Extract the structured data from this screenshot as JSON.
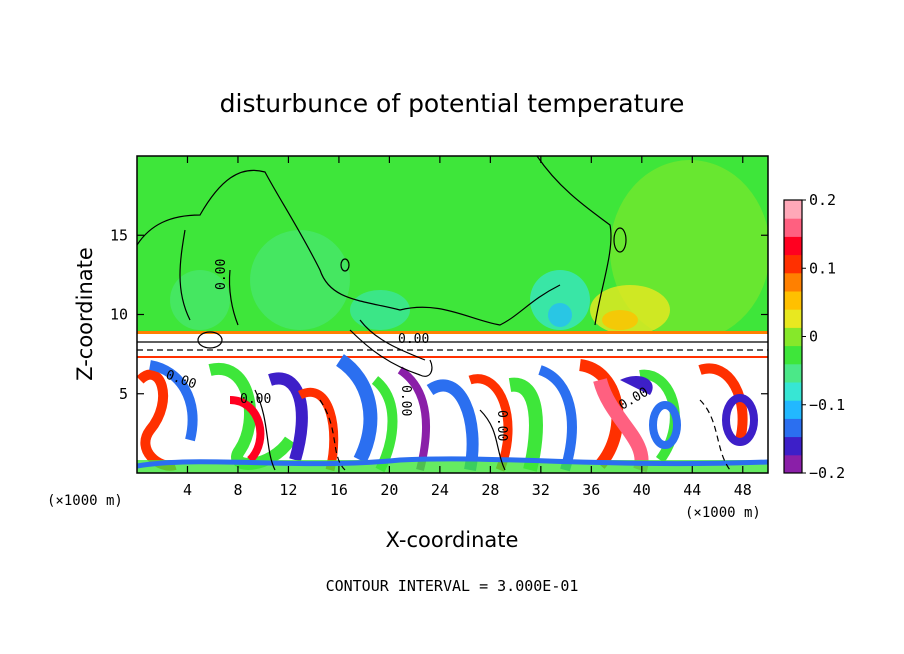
{
  "chart_data": {
    "type": "heatmap",
    "title": "disturbunce of potential temperature",
    "xlabel": "X-coordinate",
    "ylabel": "Z-coordinate",
    "x_unit_label": "(×1000 m)",
    "y_unit_label": "(×1000 m)",
    "xlim": [
      0,
      50
    ],
    "ylim": [
      0,
      20
    ],
    "x_ticks": [
      4,
      8,
      12,
      16,
      20,
      24,
      28,
      32,
      36,
      40,
      44,
      48
    ],
    "y_ticks": [
      5,
      10,
      15
    ],
    "colorbar": {
      "range": [
        -0.2,
        0.2
      ],
      "tick_values": [
        0.2,
        0.1,
        0,
        -0.1,
        -0.2
      ],
      "tick_labels": [
        "0.2",
        "0.1",
        "0",
        "−0.1",
        "−0.2"
      ],
      "colors": [
        "#8a1fa8",
        "#3d1fc8",
        "#2b6ff0",
        "#22b8ff",
        "#37e6d4",
        "#4be888",
        "#3ee63a",
        "#86e82a",
        "#e8e820",
        "#ffc000",
        "#ff8000",
        "#ff3000",
        "#ff0020",
        "#ff6080",
        "#ffa8b8"
      ]
    },
    "contour_interval_text": "CONTOUR INTERVAL = 3.000E-01",
    "contour_labels": [
      "0.00",
      "0.00",
      "0.00",
      "0.00",
      "0.00",
      "0.00",
      "0.00"
    ]
  }
}
